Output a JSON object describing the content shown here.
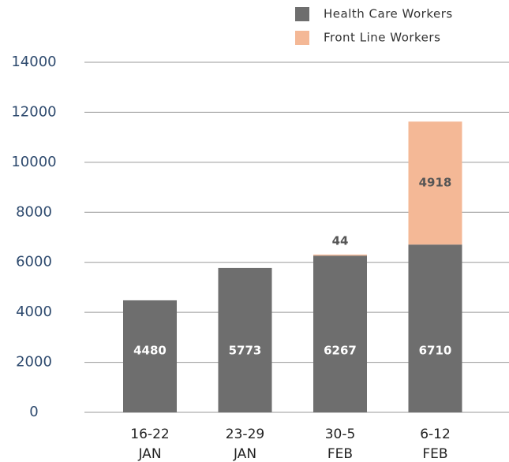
{
  "chart_data": {
    "type": "stacked_bar",
    "categories": [
      [
        "16-22",
        "JAN"
      ],
      [
        "23-29",
        "JAN"
      ],
      [
        "30-5",
        "FEB"
      ],
      [
        "6-12",
        "FEB"
      ]
    ],
    "series": [
      {
        "name": "Health Care Workers",
        "color": "#6e6e6e",
        "values": [
          4480,
          5773,
          6267,
          6710
        ]
      },
      {
        "name": "Front Line Workers",
        "color": "#f4b896",
        "values": [
          null,
          null,
          44,
          4918
        ]
      }
    ],
    "ylim": [
      0,
      14000
    ],
    "yticks": [
      0,
      2000,
      4000,
      6000,
      8000,
      10000,
      12000,
      14000
    ],
    "grid": true,
    "legend": "top-right"
  }
}
